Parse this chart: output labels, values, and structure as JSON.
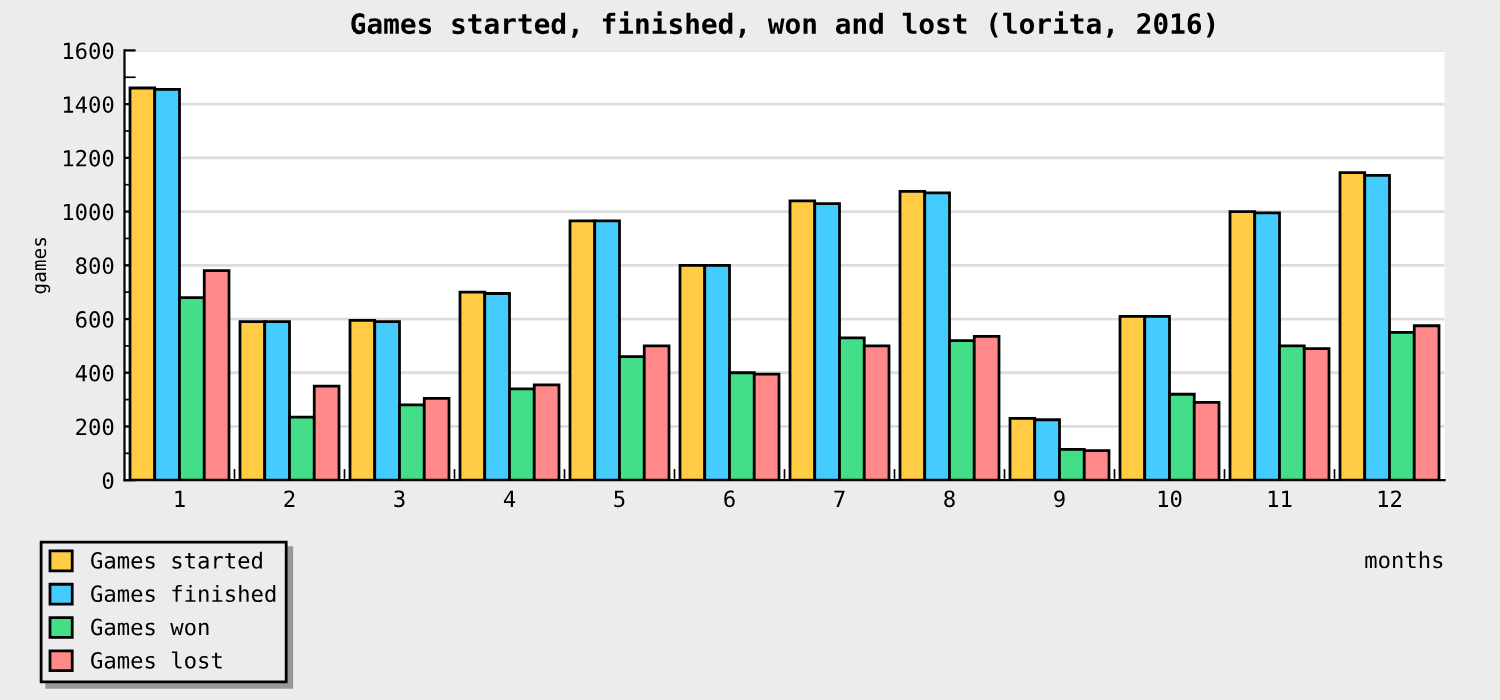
{
  "chart_data": {
    "type": "bar",
    "title": "Games started, finished, won and lost (lorita, 2016)",
    "xlabel": "months",
    "ylabel": "games",
    "categories": [
      "1",
      "2",
      "3",
      "4",
      "5",
      "6",
      "7",
      "8",
      "9",
      "10",
      "11",
      "12"
    ],
    "series": [
      {
        "name": "Games started",
        "color": "#ffcc44",
        "values": [
          1460,
          590,
          595,
          700,
          965,
          800,
          1040,
          1075,
          230,
          610,
          1000,
          1145
        ]
      },
      {
        "name": "Games finished",
        "color": "#44ccff",
        "values": [
          1455,
          590,
          590,
          695,
          965,
          800,
          1030,
          1070,
          225,
          610,
          995,
          1135
        ]
      },
      {
        "name": "Games won",
        "color": "#44dd88",
        "values": [
          680,
          235,
          280,
          340,
          460,
          400,
          530,
          520,
          115,
          320,
          500,
          550
        ]
      },
      {
        "name": "Games lost",
        "color": "#ff8888",
        "values": [
          780,
          350,
          305,
          355,
          500,
          395,
          500,
          535,
          110,
          290,
          490,
          575
        ]
      }
    ],
    "ylim": [
      0,
      1600
    ],
    "yticks": [
      0,
      200,
      400,
      600,
      800,
      1000,
      1200,
      1400,
      1600
    ],
    "grid": "y",
    "legend": "bottom left"
  }
}
